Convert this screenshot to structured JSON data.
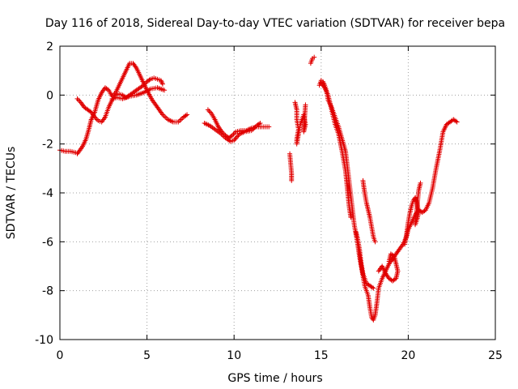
{
  "chart_data": {
    "type": "scatter",
    "title": "Day 116 of 2018, Sidereal Day-to-day VTEC variation (SDTVAR) for receiver bepa",
    "xlabel": "GPS time / hours",
    "ylabel": "SDTVAR / TECUs",
    "xlim": [
      0,
      25
    ],
    "ylim": [
      -10,
      2
    ],
    "xticks": [
      "0",
      "5",
      "10",
      "15",
      "20",
      "25"
    ],
    "yticks": [
      "2",
      "0",
      "-2",
      "-4",
      "-6",
      "-8",
      "-10"
    ],
    "grid": true,
    "marker": "plus",
    "color": "#e00000",
    "segments": [
      {
        "points": [
          [
            0.0,
            -2.25
          ],
          [
            0.3,
            -2.3
          ],
          [
            0.6,
            -2.3
          ],
          [
            0.9,
            -2.35
          ],
          [
            1.0,
            -2.4
          ],
          [
            1.1,
            -2.3
          ],
          [
            1.3,
            -2.1
          ],
          [
            1.5,
            -1.8
          ],
          [
            1.7,
            -1.3
          ],
          [
            1.8,
            -1.0
          ],
          [
            2.0,
            -0.7
          ],
          [
            2.2,
            -0.2
          ],
          [
            2.4,
            0.1
          ],
          [
            2.6,
            0.3
          ],
          [
            2.8,
            0.2
          ],
          [
            3.0,
            -0.05
          ],
          [
            3.2,
            0.1
          ],
          [
            3.4,
            0.4
          ],
          [
            3.6,
            0.7
          ],
          [
            3.8,
            1.0
          ],
          [
            4.0,
            1.3
          ],
          [
            4.2,
            1.3
          ],
          [
            4.4,
            1.1
          ],
          [
            4.6,
            0.8
          ],
          [
            4.8,
            0.5
          ],
          [
            5.0,
            0.2
          ],
          [
            5.3,
            -0.2
          ],
          [
            5.6,
            -0.5
          ],
          [
            5.9,
            -0.8
          ],
          [
            6.2,
            -1.0
          ],
          [
            6.5,
            -1.1
          ],
          [
            6.8,
            -1.1
          ],
          [
            7.1,
            -0.9
          ],
          [
            7.3,
            -0.8
          ]
        ]
      },
      {
        "points": [
          [
            1.0,
            -0.15
          ],
          [
            1.2,
            -0.3
          ],
          [
            1.4,
            -0.5
          ],
          [
            1.6,
            -0.6
          ],
          [
            1.8,
            -0.7
          ],
          [
            2.0,
            -0.9
          ],
          [
            2.2,
            -1.05
          ],
          [
            2.4,
            -1.1
          ],
          [
            2.6,
            -0.9
          ],
          [
            2.8,
            -0.5
          ],
          [
            3.0,
            -0.2
          ],
          [
            3.2,
            0.0
          ],
          [
            3.4,
            0.05
          ],
          [
            3.6,
            0.0
          ],
          [
            3.8,
            -0.1
          ],
          [
            4.0,
            0.0
          ],
          [
            4.2,
            0.1
          ],
          [
            4.4,
            0.2
          ],
          [
            4.6,
            0.3
          ],
          [
            4.8,
            0.4
          ],
          [
            5.0,
            0.55
          ],
          [
            5.2,
            0.65
          ],
          [
            5.4,
            0.7
          ],
          [
            5.6,
            0.65
          ],
          [
            5.8,
            0.6
          ],
          [
            5.9,
            0.45
          ]
        ]
      },
      {
        "points": [
          [
            3.0,
            -0.15
          ],
          [
            3.3,
            -0.1
          ],
          [
            3.6,
            -0.15
          ],
          [
            4.0,
            -0.05
          ],
          [
            4.4,
            0.0
          ],
          [
            4.8,
            0.1
          ],
          [
            5.2,
            0.25
          ],
          [
            5.6,
            0.3
          ],
          [
            6.0,
            0.2
          ]
        ]
      },
      {
        "points": [
          [
            8.5,
            -0.6
          ],
          [
            8.7,
            -0.75
          ],
          [
            8.9,
            -1.0
          ],
          [
            9.1,
            -1.3
          ],
          [
            9.3,
            -1.5
          ],
          [
            9.5,
            -1.65
          ],
          [
            9.7,
            -1.75
          ],
          [
            9.9,
            -1.65
          ],
          [
            10.1,
            -1.5
          ],
          [
            10.4,
            -1.45
          ],
          [
            10.7,
            -1.45
          ],
          [
            11.0,
            -1.35
          ],
          [
            11.3,
            -1.3
          ],
          [
            11.6,
            -1.3
          ],
          [
            12.0,
            -1.3
          ]
        ]
      },
      {
        "points": [
          [
            8.3,
            -1.15
          ],
          [
            8.6,
            -1.25
          ],
          [
            8.9,
            -1.4
          ],
          [
            9.2,
            -1.55
          ],
          [
            9.5,
            -1.75
          ],
          [
            9.8,
            -1.9
          ],
          [
            10.0,
            -1.85
          ],
          [
            10.3,
            -1.6
          ],
          [
            10.6,
            -1.5
          ],
          [
            11.0,
            -1.45
          ],
          [
            11.3,
            -1.25
          ],
          [
            11.5,
            -1.15
          ]
        ]
      },
      {
        "points": [
          [
            13.2,
            -2.4
          ],
          [
            13.25,
            -2.8
          ],
          [
            13.3,
            -3.2
          ],
          [
            13.3,
            -3.5
          ]
        ]
      },
      {
        "points": [
          [
            13.5,
            -0.3
          ],
          [
            13.6,
            -0.6
          ],
          [
            13.6,
            -1.0
          ],
          [
            13.7,
            -1.4
          ],
          [
            13.6,
            -1.8
          ],
          [
            13.6,
            -2.0
          ],
          [
            13.8,
            -1.2
          ],
          [
            13.9,
            -1.0
          ],
          [
            14.0,
            -0.8
          ],
          [
            14.1,
            -1.2
          ],
          [
            14.0,
            -1.5
          ],
          [
            14.1,
            -0.4
          ]
        ]
      },
      {
        "points": [
          [
            14.4,
            1.3
          ],
          [
            14.5,
            1.5
          ],
          [
            14.6,
            1.55
          ]
        ]
      },
      {
        "points": [
          [
            14.9,
            0.4
          ],
          [
            15.0,
            0.6
          ],
          [
            15.1,
            0.55
          ],
          [
            15.2,
            0.4
          ],
          [
            15.3,
            0.2
          ],
          [
            15.4,
            -0.2
          ],
          [
            15.6,
            -0.5
          ],
          [
            15.8,
            -0.9
          ],
          [
            16.0,
            -1.3
          ],
          [
            16.2,
            -1.8
          ],
          [
            16.4,
            -2.3
          ],
          [
            16.5,
            -2.9
          ],
          [
            16.6,
            -3.5
          ],
          [
            16.7,
            -4.1
          ],
          [
            16.8,
            -4.7
          ],
          [
            16.9,
            -5.3
          ],
          [
            17.0,
            -5.7
          ],
          [
            17.1,
            -6.1
          ],
          [
            17.2,
            -6.6
          ],
          [
            17.3,
            -7.0
          ],
          [
            17.4,
            -7.4
          ],
          [
            17.5,
            -7.8
          ],
          [
            17.7,
            -8.2
          ],
          [
            17.8,
            -8.7
          ],
          [
            17.9,
            -9.1
          ],
          [
            18.0,
            -9.2
          ],
          [
            18.1,
            -9.0
          ],
          [
            18.2,
            -8.5
          ],
          [
            18.3,
            -7.9
          ],
          [
            18.5,
            -7.5
          ],
          [
            18.7,
            -7.2
          ],
          [
            18.9,
            -6.9
          ],
          [
            19.1,
            -6.7
          ],
          [
            19.3,
            -6.5
          ],
          [
            19.5,
            -6.3
          ],
          [
            19.7,
            -6.1
          ],
          [
            19.9,
            -5.8
          ],
          [
            20.0,
            -5.5
          ],
          [
            20.2,
            -5.2
          ],
          [
            20.4,
            -4.9
          ],
          [
            20.6,
            -4.7
          ],
          [
            20.8,
            -4.8
          ],
          [
            21.0,
            -4.7
          ],
          [
            21.2,
            -4.4
          ],
          [
            21.4,
            -3.8
          ],
          [
            21.6,
            -3.0
          ],
          [
            21.8,
            -2.3
          ],
          [
            22.0,
            -1.5
          ],
          [
            22.2,
            -1.2
          ],
          [
            22.4,
            -1.1
          ],
          [
            22.6,
            -1.0
          ],
          [
            22.8,
            -1.1
          ]
        ]
      },
      {
        "points": [
          [
            15.0,
            0.5
          ],
          [
            15.2,
            0.3
          ],
          [
            15.4,
            0.0
          ],
          [
            15.6,
            -0.6
          ],
          [
            15.8,
            -1.2
          ],
          [
            16.0,
            -1.6
          ],
          [
            16.2,
            -2.3
          ],
          [
            16.4,
            -3.1
          ],
          [
            16.5,
            -3.8
          ],
          [
            16.6,
            -4.5
          ],
          [
            16.7,
            -5.0
          ]
        ]
      },
      {
        "points": [
          [
            17.0,
            -5.6
          ],
          [
            17.1,
            -5.9
          ],
          [
            17.2,
            -6.3
          ],
          [
            17.3,
            -6.9
          ],
          [
            17.4,
            -7.3
          ],
          [
            17.6,
            -7.7
          ],
          [
            17.8,
            -7.8
          ],
          [
            18.0,
            -7.9
          ]
        ]
      },
      {
        "points": [
          [
            17.4,
            -3.5
          ],
          [
            17.5,
            -4.0
          ],
          [
            17.6,
            -4.4
          ],
          [
            17.7,
            -4.7
          ],
          [
            17.8,
            -5.0
          ],
          [
            17.9,
            -5.4
          ],
          [
            18.0,
            -5.8
          ],
          [
            18.1,
            -6.0
          ]
        ]
      },
      {
        "points": [
          [
            18.3,
            -7.2
          ],
          [
            18.5,
            -7.0
          ],
          [
            18.7,
            -7.3
          ],
          [
            18.9,
            -7.5
          ],
          [
            19.1,
            -7.6
          ],
          [
            19.3,
            -7.5
          ],
          [
            19.4,
            -7.2
          ],
          [
            19.3,
            -6.9
          ],
          [
            19.2,
            -6.6
          ],
          [
            19.0,
            -6.5
          ],
          [
            18.9,
            -6.8
          ]
        ]
      },
      {
        "points": [
          [
            19.8,
            -6.1
          ],
          [
            19.9,
            -5.7
          ],
          [
            20.0,
            -5.2
          ],
          [
            20.1,
            -4.8
          ],
          [
            20.2,
            -4.5
          ],
          [
            20.3,
            -4.3
          ],
          [
            20.4,
            -4.2
          ],
          [
            20.5,
            -4.4
          ],
          [
            20.6,
            -4.8
          ],
          [
            20.5,
            -5.1
          ],
          [
            20.4,
            -5.3
          ],
          [
            20.6,
            -3.9
          ],
          [
            20.7,
            -3.6
          ]
        ]
      }
    ]
  }
}
